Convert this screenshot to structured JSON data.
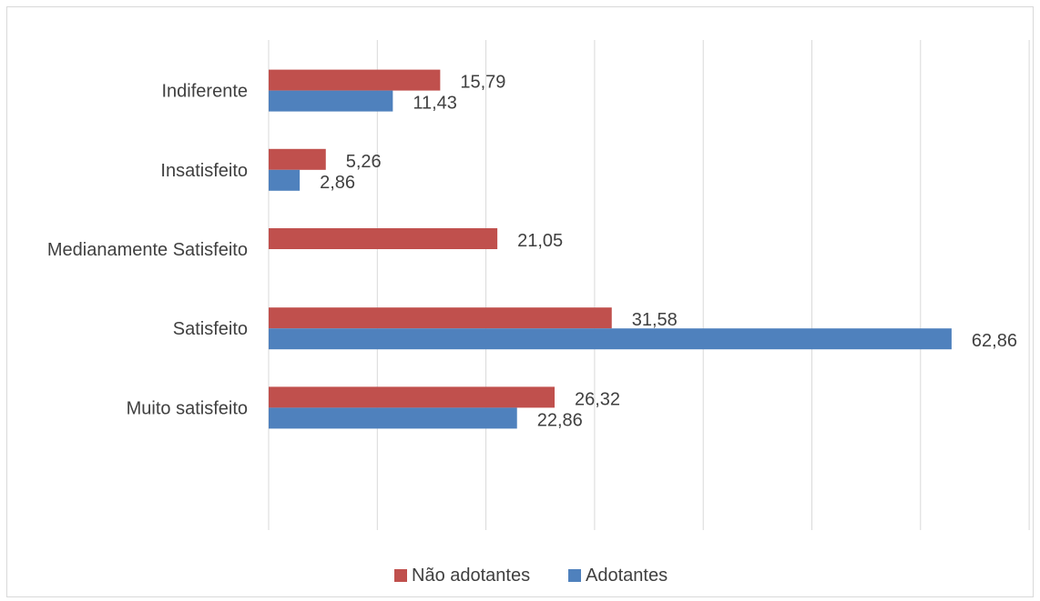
{
  "chart_data": {
    "type": "bar",
    "orientation": "horizontal",
    "categories": [
      "Muito satisfeito",
      "Satisfeito",
      "Medianamente Satisfeito",
      "Insatisfeito",
      "Indiferente"
    ],
    "series": [
      {
        "name": "Não adotantes",
        "color": "#c0504d",
        "values": [
          26.32,
          31.58,
          21.05,
          5.26,
          15.79
        ],
        "labels": [
          "26,32",
          "31,58",
          "21,05",
          "5,26",
          "15,79"
        ]
      },
      {
        "name": "Adotantes",
        "color": "#4f81bd",
        "values": [
          22.86,
          62.86,
          null,
          2.86,
          11.43
        ],
        "labels": [
          "22,86",
          "62,86",
          "",
          "2,86",
          "11,43"
        ]
      }
    ],
    "xlim": [
      0,
      70
    ],
    "grid": true,
    "legend_position": "bottom"
  }
}
